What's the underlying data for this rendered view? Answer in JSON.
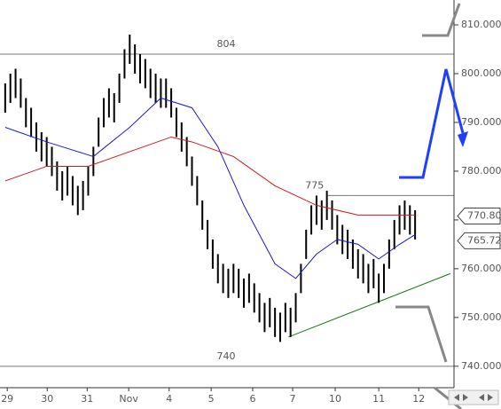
{
  "chart_data": {
    "type": "ohlc",
    "high": [
      798,
      800,
      801,
      799,
      795,
      793,
      790,
      788,
      787,
      785,
      782,
      780,
      781,
      779,
      777,
      778,
      781,
      785,
      791,
      795,
      797,
      796,
      800,
      805,
      808,
      806,
      804,
      803,
      801,
      800,
      799,
      799,
      797,
      793,
      790,
      787,
      783,
      779,
      774,
      770,
      766,
      763,
      761,
      760,
      761,
      760,
      758,
      759,
      757,
      755,
      753,
      754,
      752,
      751,
      753,
      752,
      755,
      761,
      768,
      773,
      775,
      774,
      776,
      774,
      771,
      769,
      768,
      766,
      764,
      763,
      761,
      762,
      759,
      761,
      766,
      770,
      773,
      774,
      773,
      772
    ],
    "low": [
      792,
      794,
      795,
      793,
      789,
      787,
      784,
      782,
      781,
      779,
      776,
      774,
      775,
      773,
      771,
      772,
      775,
      779,
      785,
      789,
      791,
      790,
      794,
      799,
      802,
      800,
      798,
      797,
      795,
      794,
      793,
      793,
      791,
      787,
      784,
      781,
      777,
      773,
      768,
      764,
      760,
      757,
      755,
      754,
      755,
      754,
      752,
      753,
      751,
      749,
      747,
      748,
      746,
      745,
      747,
      746,
      749,
      755,
      762,
      767,
      769,
      768,
      770,
      768,
      765,
      763,
      762,
      760,
      758,
      757,
      755,
      756,
      753,
      755,
      760,
      764,
      767,
      768,
      767,
      766
    ],
    "bar_color": "#000000",
    "moving_averages": [
      {
        "color": "#1a1acc",
        "x": [
          0,
          8,
          17,
          24,
          30,
          36,
          41,
          46,
          52,
          56,
          60,
          64,
          68,
          72,
          76,
          79
        ],
        "values": [
          789,
          786,
          783,
          789,
          795,
          793,
          785,
          773,
          761,
          758,
          763,
          766,
          765,
          762,
          765,
          767
        ]
      },
      {
        "color": "#cc1a1a",
        "x": [
          0,
          8,
          16,
          24,
          32,
          36,
          44,
          52,
          60,
          68,
          76,
          79
        ],
        "values": [
          778,
          781,
          781,
          784,
          787,
          786,
          783,
          777,
          773,
          771,
          771,
          771
        ]
      }
    ],
    "levels": [
      {
        "value": 804,
        "label": "804",
        "x": [
          -1,
          86.5
        ]
      },
      {
        "value": 775,
        "label": "775",
        "x": [
          62.2,
          86.5
        ]
      },
      {
        "value": 740,
        "label": "740",
        "x": [
          -1,
          86.5
        ]
      }
    ],
    "trendline": {
      "color": "#1a7a1a",
      "x": [
        54.6,
        85.8
      ],
      "values": [
        746,
        759
      ]
    },
    "price_tags": [
      {
        "value": 770.8,
        "label": "770.80"
      },
      {
        "value": 765.72,
        "label": "765.72"
      }
    ],
    "xlim": [
      -1,
      86.5
    ],
    "ylim": [
      735.6,
      815.1
    ],
    "yticks": [
      {
        "value": 740,
        "label": "740.000"
      },
      {
        "value": 750,
        "label": "750.000"
      },
      {
        "value": 760,
        "label": "760.000"
      },
      {
        "value": 770,
        "label": "770.000"
      },
      {
        "value": 780,
        "label": "780.000"
      },
      {
        "value": 790,
        "label": "790.000"
      },
      {
        "value": 800,
        "label": "800.000"
      },
      {
        "value": 810,
        "label": "810.000"
      }
    ],
    "xticks": [
      {
        "value": 0.4,
        "label": "29"
      },
      {
        "value": 8.1,
        "label": "30"
      },
      {
        "value": 15.8,
        "label": "31"
      },
      {
        "value": 23.8,
        "label": "Nov"
      },
      {
        "value": 31.6,
        "label": "4"
      },
      {
        "value": 39.7,
        "label": "5"
      },
      {
        "value": 47.7,
        "label": "6"
      },
      {
        "value": 55.4,
        "label": "7"
      },
      {
        "value": 63.6,
        "label": "10"
      },
      {
        "value": 72,
        "label": "11"
      },
      {
        "value": 79.7,
        "label": "12"
      }
    ]
  }
}
